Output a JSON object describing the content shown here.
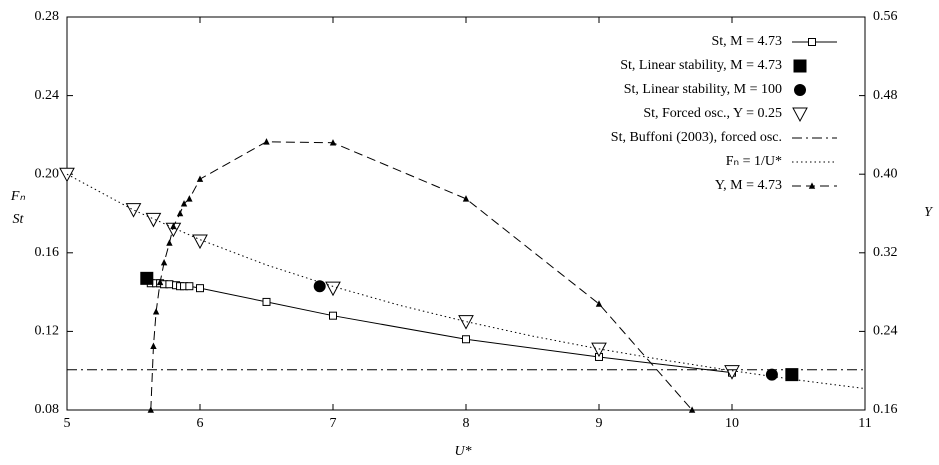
{
  "chart_data": {
    "type": "line",
    "x_label": "U*",
    "y_label": [
      "Fₙ",
      "St"
    ],
    "y2_label": "Y",
    "xlim": [
      5,
      11
    ],
    "xticks": [
      5,
      6,
      7,
      8,
      9,
      10,
      11
    ],
    "ylim": [
      0.08,
      0.28
    ],
    "yticks": [
      0.08,
      0.12,
      0.16,
      {
        "value": 0.2,
        "label": "0.20"
      },
      0.24,
      0.28
    ],
    "y2lim": [
      0.16,
      0.56
    ],
    "y2ticks": [
      0.16,
      0.24,
      0.32,
      {
        "value": 0.4,
        "label": "0.40"
      },
      0.48,
      0.56
    ],
    "legend": "upper right",
    "series": [
      {
        "name": "St, M = 4.73",
        "color": "#000",
        "marker": "square-open",
        "line": "solid",
        "x": [
          5.63,
          5.67,
          5.7,
          5.73,
          5.77,
          5.82,
          5.85,
          5.88,
          5.92,
          6,
          6.5,
          7,
          8,
          9,
          10
        ],
        "values": [
          0.1445,
          0.1445,
          0.1445,
          0.144,
          0.144,
          0.1435,
          0.143,
          0.143,
          0.143,
          0.142,
          0.135,
          0.128,
          0.116,
          0.107,
          0.099
        ]
      },
      {
        "name": "St, Linear stability, M = 4.73",
        "color": "#000",
        "marker": "square-filled",
        "line": "none",
        "x": [
          5.6,
          10.45
        ],
        "values": [
          0.147,
          0.098
        ]
      },
      {
        "name": "St, Linear stability, M = 100",
        "color": "#000",
        "marker": "circle-filled",
        "line": "none",
        "x": [
          6.9,
          10.3
        ],
        "values": [
          0.143,
          0.098
        ]
      },
      {
        "name": "St, Forced osc., Y = 0.25",
        "color": "#000",
        "marker": "triangle-down-open",
        "line": "none",
        "x": [
          5.0,
          5.5,
          5.65,
          5.8,
          6.0,
          7.0,
          8.0,
          9.0,
          10.0
        ],
        "values": [
          0.2,
          0.182,
          0.177,
          0.172,
          0.166,
          0.142,
          0.125,
          0.111,
          0.0995
        ]
      },
      {
        "name": "St, Buffoni (2003), forced osc.",
        "color": "#000",
        "marker": "none",
        "line": "dashdot",
        "x": [
          5,
          11
        ],
        "values": [
          0.1005,
          0.1005
        ]
      },
      {
        "name": "Fₙ = 1/U*",
        "color": "#000",
        "marker": "none",
        "line": "dotted",
        "x": [
          5,
          5.5,
          6,
          6.5,
          7,
          7.5,
          8,
          8.5,
          9,
          9.5,
          10,
          10.5,
          11
        ],
        "values": [
          0.2,
          0.1818,
          0.1667,
          0.1538,
          0.1429,
          0.1333,
          0.125,
          0.1176,
          0.1111,
          0.1053,
          0.1,
          0.0952,
          0.0909
        ]
      },
      {
        "name": "Y, M = 4.73",
        "color": "#000",
        "marker": "triangle-up-filled",
        "line": "dashed",
        "axis": "y2",
        "x": [
          5.63,
          5.65,
          5.67,
          5.7,
          5.73,
          5.77,
          5.8,
          5.85,
          5.88,
          5.92,
          6,
          6.5,
          7,
          8,
          9,
          9.7
        ],
        "values": [
          0.16,
          0.225,
          0.26,
          0.29,
          0.31,
          0.33,
          0.347,
          0.36,
          0.37,
          0.375,
          0.395,
          0.433,
          0.432,
          0.375,
          0.268,
          0.16
        ]
      }
    ]
  }
}
